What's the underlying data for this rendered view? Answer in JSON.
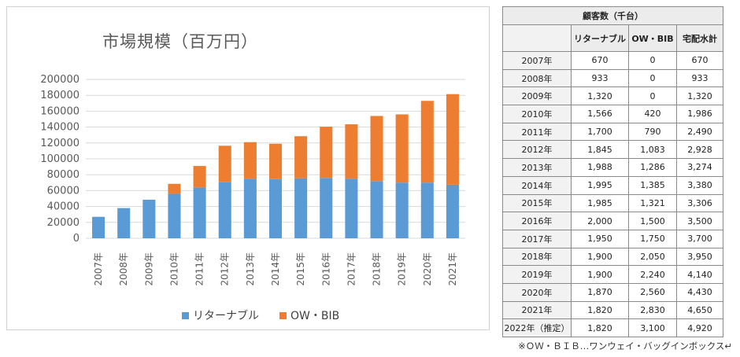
{
  "chart_data": {
    "type": "bar",
    "stacked": true,
    "title": "市場規模（百万円）",
    "categories": [
      "2007年",
      "2008年",
      "2009年",
      "2010年",
      "2011年",
      "2012年",
      "2013年",
      "2014年",
      "2015年",
      "2016年",
      "2017年",
      "2018年",
      "2019年",
      "2020年",
      "2021年"
    ],
    "series": [
      {
        "name": "リターナブル",
        "color": "#5B9BD5",
        "values": [
          27000,
          38000,
          48500,
          56000,
          64000,
          70500,
          75000,
          74500,
          75500,
          76000,
          75000,
          72000,
          70000,
          70000,
          67500
        ]
      },
      {
        "name": "OW・BIB",
        "color": "#ED7D31",
        "values": [
          0,
          0,
          0,
          12500,
          27000,
          46000,
          46000,
          44500,
          53000,
          64500,
          68500,
          82000,
          86000,
          103000,
          114000
        ]
      }
    ],
    "ylim": [
      0,
      200000
    ],
    "yticks": [
      "200000",
      "180000",
      "160000",
      "140000",
      "120000",
      "100000",
      "80000",
      "60000",
      "40000",
      "20000",
      "0"
    ],
    "grid": true,
    "legend_position": "bottom"
  },
  "table": {
    "caption": "顧客数（千台）",
    "headers": [
      "",
      "リターナブル",
      "OW・BIB",
      "宅配水計"
    ],
    "rows": [
      [
        "2007年",
        "670",
        "0",
        "670"
      ],
      [
        "2008年",
        "933",
        "0",
        "933"
      ],
      [
        "2009年",
        "1,320",
        "0",
        "1,320"
      ],
      [
        "2010年",
        "1,566",
        "420",
        "1,986"
      ],
      [
        "2011年",
        "1,700",
        "790",
        "2,490"
      ],
      [
        "2012年",
        "1,845",
        "1,083",
        "2,928"
      ],
      [
        "2013年",
        "1,988",
        "1,286",
        "3,274"
      ],
      [
        "2014年",
        "1,995",
        "1,385",
        "3,380"
      ],
      [
        "2015年",
        "1,985",
        "1,321",
        "3,306"
      ],
      [
        "2016年",
        "2,000",
        "1,500",
        "3,500"
      ],
      [
        "2017年",
        "1,950",
        "1,750",
        "3,700"
      ],
      [
        "2018年",
        "1,900",
        "2,050",
        "3,950"
      ],
      [
        "2019年",
        "1,900",
        "2,240",
        "4,140"
      ],
      [
        "2020年",
        "1,870",
        "2,560",
        "4,430"
      ],
      [
        "2021年",
        "1,820",
        "2,830",
        "4,650"
      ],
      [
        "2022年（推定）",
        "1,820",
        "3,100",
        "4,920"
      ]
    ]
  },
  "footnote": "※ＯＷ・ＢＩＢ…ワンウェイ・バッグインボックス↵"
}
